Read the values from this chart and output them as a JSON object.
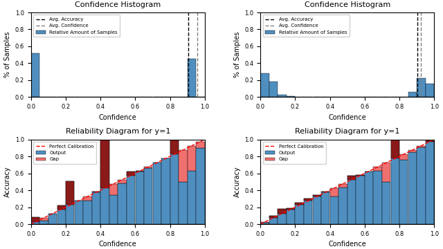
{
  "hist1": {
    "bin_heights": [
      0.52,
      0.0,
      0.0,
      0.0,
      0.0,
      0.0,
      0.0,
      0.0,
      0.0,
      0.0,
      0.0,
      0.0,
      0.0,
      0.0,
      0.0,
      0.0,
      0.0,
      0.0,
      0.45,
      0.0
    ],
    "avg_accuracy": 0.905,
    "avg_confidence": 0.955,
    "xlim": [
      0.0,
      1.0
    ],
    "ylim": [
      0.0,
      1.0
    ],
    "xlabel": "Confidence",
    "ylabel": "% of Samples",
    "title": "Confidence Histogram"
  },
  "hist2": {
    "bin_heights": [
      0.28,
      0.18,
      0.025,
      0.01,
      0.005,
      0.005,
      0.005,
      0.005,
      0.005,
      0.005,
      0.005,
      0.005,
      0.005,
      0.005,
      0.005,
      0.005,
      0.005,
      0.06,
      0.22,
      0.16
    ],
    "avg_accuracy": 0.905,
    "avg_confidence": 0.925,
    "xlim": [
      0.0,
      1.0
    ],
    "ylim": [
      0.0,
      1.0
    ],
    "xlabel": "Confidence",
    "ylabel": "% of Samples",
    "title": "Confidence Histogram"
  },
  "rel1": {
    "bins": [
      0.025,
      0.075,
      0.125,
      0.175,
      0.225,
      0.275,
      0.325,
      0.375,
      0.425,
      0.475,
      0.525,
      0.575,
      0.625,
      0.675,
      0.725,
      0.775,
      0.825,
      0.875,
      0.925,
      0.975
    ],
    "accuracy": [
      0.08,
      0.04,
      0.12,
      0.22,
      0.51,
      0.28,
      0.28,
      0.38,
      1.0,
      0.34,
      0.48,
      0.62,
      0.63,
      0.66,
      0.73,
      0.78,
      1.0,
      0.5,
      0.63,
      0.9
    ],
    "confidence": [
      0.025,
      0.075,
      0.125,
      0.175,
      0.225,
      0.275,
      0.325,
      0.375,
      0.425,
      0.475,
      0.525,
      0.575,
      0.625,
      0.675,
      0.725,
      0.775,
      0.825,
      0.875,
      0.925,
      0.975
    ],
    "xlim": [
      0.0,
      1.0
    ],
    "ylim": [
      0.0,
      1.0
    ],
    "xlabel": "Confidence",
    "ylabel": "Accuracy",
    "title": "Reliability Diagram for y=1"
  },
  "rel2": {
    "bins": [
      0.025,
      0.075,
      0.125,
      0.175,
      0.225,
      0.275,
      0.325,
      0.375,
      0.425,
      0.475,
      0.525,
      0.575,
      0.625,
      0.675,
      0.725,
      0.775,
      0.825,
      0.875,
      0.925,
      0.975
    ],
    "accuracy": [
      0.02,
      0.1,
      0.18,
      0.19,
      0.25,
      0.3,
      0.34,
      0.38,
      0.33,
      0.43,
      0.57,
      0.58,
      0.62,
      0.63,
      0.5,
      1.0,
      0.76,
      0.85,
      0.91,
      1.0
    ],
    "confidence": [
      0.025,
      0.075,
      0.125,
      0.175,
      0.225,
      0.275,
      0.325,
      0.375,
      0.425,
      0.475,
      0.525,
      0.575,
      0.625,
      0.675,
      0.725,
      0.775,
      0.825,
      0.875,
      0.925,
      0.975
    ],
    "xlim": [
      0.0,
      1.0
    ],
    "ylim": [
      0.0,
      1.0
    ],
    "xlabel": "Confidence",
    "ylabel": "Accuracy",
    "title": "Reliability Diagram for y=1"
  },
  "bar_color": "#4f8fc0",
  "gap_color": "#f07070",
  "dark_red": "#8b1a1a",
  "bin_width": 0.05
}
